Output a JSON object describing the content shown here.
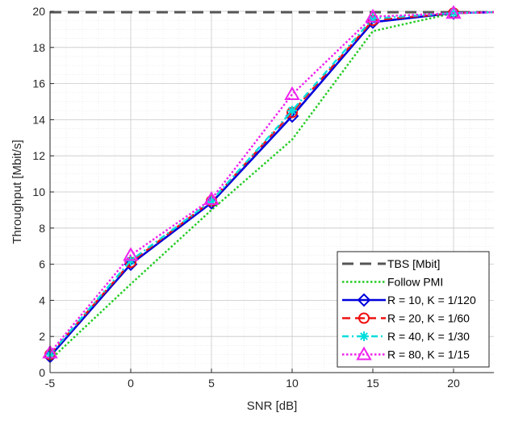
{
  "chart_data": {
    "type": "line",
    "xlabel": "SNR [dB]",
    "ylabel": "Throughput [Mbit/s]",
    "xlim": [
      -5,
      22.5
    ],
    "ylim": [
      0,
      20
    ],
    "xticks": [
      -5,
      0,
      5,
      10,
      15,
      20
    ],
    "yticks": [
      0,
      2,
      4,
      6,
      8,
      10,
      12,
      14,
      16,
      18,
      20
    ],
    "grid": true,
    "minor_grid": true,
    "legend_position": "bottom-right",
    "series": [
      {
        "name": "TBS [Mbit]",
        "color": "#555555",
        "line_style": "dashed",
        "marker": "none",
        "x": [
          -5,
          22.5
        ],
        "y": [
          19.95,
          19.95
        ]
      },
      {
        "name": "Follow PMI",
        "color": "#22cc22",
        "line_style": "dotted",
        "marker": "none",
        "x": [
          -5,
          0,
          5,
          10,
          15,
          20,
          22.5
        ],
        "y": [
          0.7,
          4.9,
          9.0,
          12.9,
          18.9,
          19.9,
          19.95
        ]
      },
      {
        "name": "R = 10, K = 1/120",
        "color": "#0000dd",
        "line_style": "solid",
        "marker": "diamond",
        "x": [
          -5,
          0,
          5,
          10,
          15,
          20,
          22.5
        ],
        "y": [
          0.9,
          6.0,
          9.4,
          14.2,
          19.4,
          19.9,
          19.95
        ]
      },
      {
        "name": "R = 20, K = 1/60",
        "color": "#ee1111",
        "line_style": "dashed",
        "marker": "circle",
        "x": [
          -5,
          0,
          5,
          10,
          15,
          20,
          22.5
        ],
        "y": [
          1.0,
          6.1,
          9.5,
          14.4,
          19.5,
          19.9,
          19.95
        ]
      },
      {
        "name": "R = 40, K = 1/30",
        "color": "#00dddd",
        "line_style": "dash-dot",
        "marker": "asterisk",
        "x": [
          -5,
          0,
          5,
          10,
          15,
          20,
          22.5
        ],
        "y": [
          1.0,
          6.2,
          9.5,
          14.5,
          19.6,
          19.9,
          19.95
        ]
      },
      {
        "name": "R = 80, K = 1/15",
        "color": "#ee22ee",
        "line_style": "dotted",
        "marker": "triangle",
        "x": [
          -5,
          0,
          5,
          10,
          15,
          20,
          22.5
        ],
        "y": [
          1.1,
          6.5,
          9.6,
          15.4,
          19.7,
          19.9,
          19.95
        ]
      }
    ]
  }
}
